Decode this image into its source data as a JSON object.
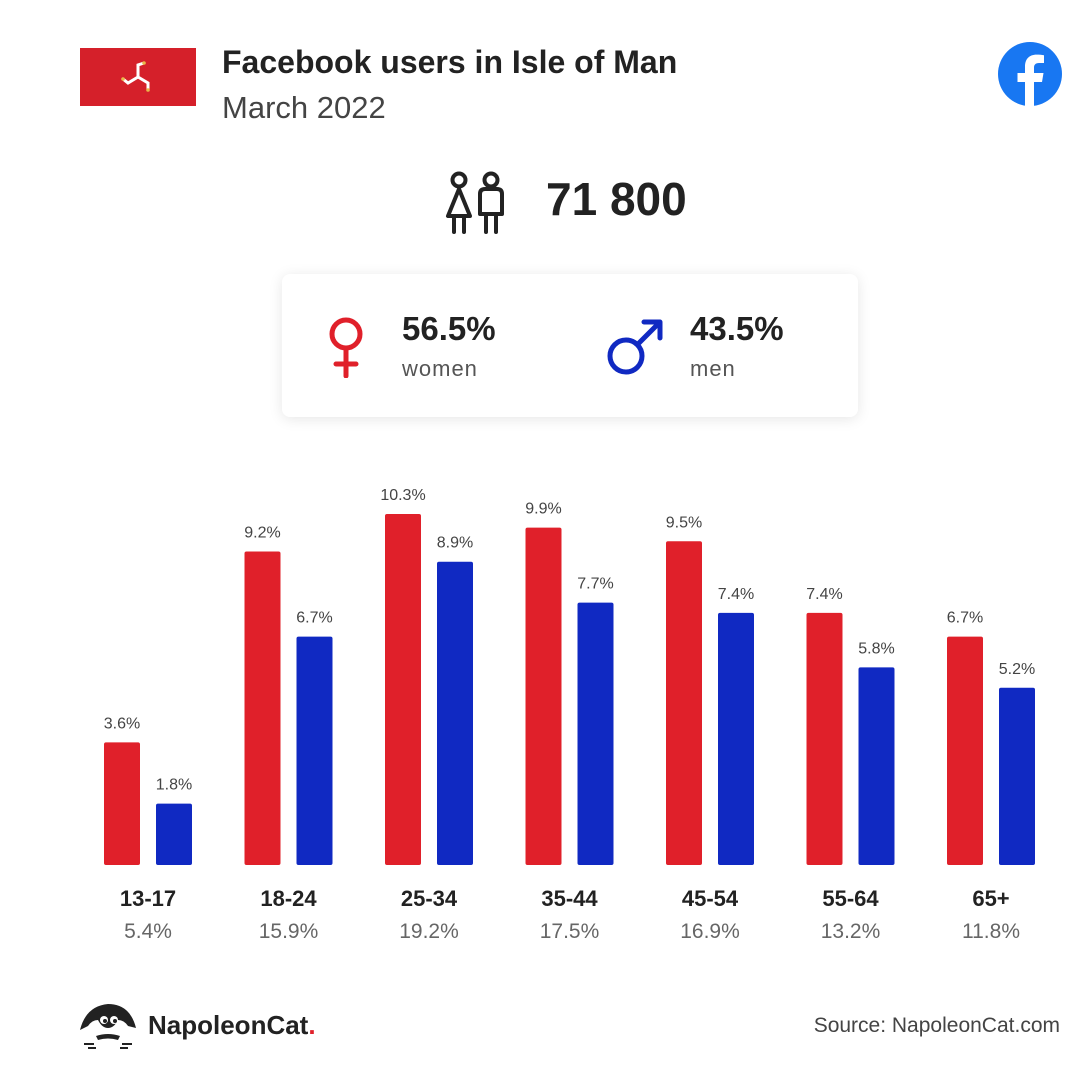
{
  "header": {
    "title": "Facebook users in Isle of Man",
    "subtitle": "March 2022"
  },
  "summary": {
    "total_users": "71 800",
    "women_pct": "56.5%",
    "women_label": "women",
    "men_pct": "43.5%",
    "men_label": "men"
  },
  "colors": {
    "women": "#e0202a",
    "men": "#1029c2",
    "facebook": "#1877f2"
  },
  "chart_data": {
    "type": "bar",
    "categories": [
      "13-17",
      "18-24",
      "25-34",
      "35-44",
      "45-54",
      "55-64",
      "65+"
    ],
    "category_totals": [
      "5.4%",
      "15.9%",
      "19.2%",
      "17.5%",
      "16.9%",
      "13.2%",
      "11.8%"
    ],
    "series": [
      {
        "name": "women",
        "values": [
          3.6,
          9.2,
          10.3,
          9.9,
          9.5,
          7.4,
          6.7
        ],
        "labels": [
          "3.6%",
          "9.2%",
          "10.3%",
          "9.9%",
          "9.5%",
          "7.4%",
          "6.7%"
        ]
      },
      {
        "name": "men",
        "values": [
          1.8,
          6.7,
          8.9,
          7.7,
          7.4,
          5.8,
          5.2
        ],
        "labels": [
          "1.8%",
          "6.7%",
          "8.9%",
          "7.7%",
          "7.4%",
          "5.8%",
          "5.2%"
        ]
      }
    ],
    "ylim": [
      0,
      10.3
    ],
    "grid": false
  },
  "footer": {
    "brand": "NapoleonCat",
    "brand_dot": ".",
    "source": "Source: NapoleonCat.com"
  },
  "icons": {
    "flag": "isle-of-man-flag-icon",
    "facebook": "facebook-icon",
    "people": "people-icon",
    "female": "female-symbol-icon",
    "male": "male-symbol-icon",
    "brand": "napoleoncat-logo-icon"
  }
}
